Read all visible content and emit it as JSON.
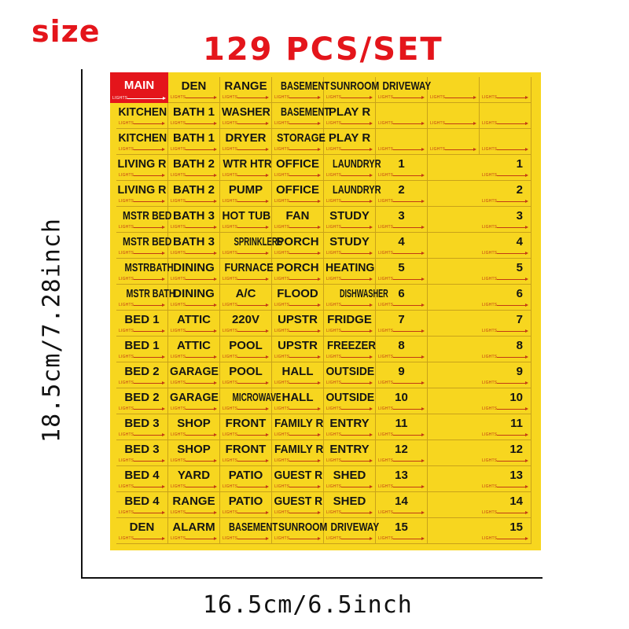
{
  "header": {
    "size_label": "size",
    "title": "129 PCS/SET"
  },
  "dimensions": {
    "height": "18.5cm/7.28inch",
    "width": "16.5cm/6.5inch"
  },
  "colors": {
    "accent_red": "#e4151b",
    "sheet_yellow": "#f7d61f",
    "lights_text": "#c23a14"
  },
  "sheet": {
    "sublabel": "LIGHTS",
    "top_rows": [
      [
        "MAIN",
        "DEN",
        "RANGE",
        "BASEMENT",
        "SUNROOM",
        "DRIVEWAY",
        "",
        ""
      ],
      [
        "KITCHEN",
        "BATH 1",
        "WASHER",
        "BASEMENT",
        "PLAY R",
        "",
        "",
        ""
      ],
      [
        "KITCHEN",
        "BATH 1",
        "DRYER",
        "STORAGE",
        "PLAY R",
        "",
        "",
        ""
      ]
    ],
    "numbered_rows": [
      {
        "labels": [
          "LIVING R",
          "BATH 2",
          "WTR HTR",
          "OFFICE",
          "LAUNDRYR",
          "1"
        ],
        "wide": "1"
      },
      {
        "labels": [
          "LIVING R",
          "BATH 2",
          "PUMP",
          "OFFICE",
          "LAUNDRYR",
          "2"
        ],
        "wide": "2"
      },
      {
        "labels": [
          "MSTR BED",
          "BATH 3",
          "HOT TUB",
          "FAN",
          "STUDY",
          "3"
        ],
        "wide": "3"
      },
      {
        "labels": [
          "MSTR BED",
          "BATH 3",
          "SPRINKLERS",
          "PORCH",
          "STUDY",
          "4"
        ],
        "wide": "4"
      },
      {
        "labels": [
          "MSTRBATH",
          "DINING",
          "FURNACE",
          "PORCH",
          "HEATING",
          "5"
        ],
        "wide": "5"
      },
      {
        "labels": [
          "MSTR BATH",
          "DINING",
          "A/C",
          "FLOOD",
          "DISHWASHER",
          "6"
        ],
        "wide": "6"
      },
      {
        "labels": [
          "BED 1",
          "ATTIC",
          "220V",
          "UPSTR",
          "FRIDGE",
          "7"
        ],
        "wide": "7"
      },
      {
        "labels": [
          "BED 1",
          "ATTIC",
          "POOL",
          "UPSTR",
          "FREEZER",
          "8"
        ],
        "wide": "8"
      },
      {
        "labels": [
          "BED 2",
          "GARAGE",
          "POOL",
          "HALL",
          "OUTSIDE",
          "9"
        ],
        "wide": "9"
      },
      {
        "labels": [
          "BED 2",
          "GARAGE",
          "MICROWAVE",
          "HALL",
          "OUTSIDE",
          "10"
        ],
        "wide": "10"
      },
      {
        "labels": [
          "BED 3",
          "SHOP",
          "FRONT",
          "FAMILY R",
          "ENTRY",
          "11"
        ],
        "wide": "11"
      },
      {
        "labels": [
          "BED 3",
          "SHOP",
          "FRONT",
          "FAMILY R",
          "ENTRY",
          "12"
        ],
        "wide": "12"
      },
      {
        "labels": [
          "BED 4",
          "YARD",
          "PATIO",
          "GUEST R",
          "SHED",
          "13"
        ],
        "wide": "13"
      },
      {
        "labels": [
          "BED 4",
          "RANGE",
          "PATIO",
          "GUEST R",
          "SHED",
          "14"
        ],
        "wide": "14"
      },
      {
        "labels": [
          "DEN",
          "ALARM",
          "BASEMENT",
          "SUNROOM",
          "DRIVEWAY",
          "15"
        ],
        "wide": "15"
      }
    ]
  }
}
